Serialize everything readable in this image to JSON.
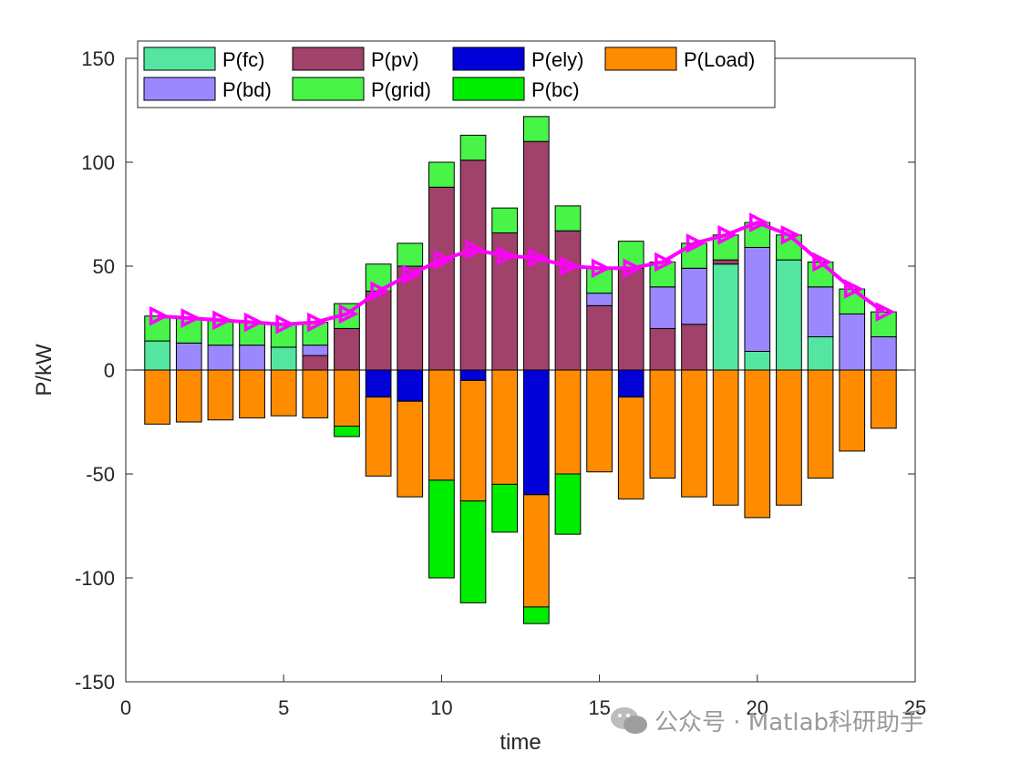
{
  "chart_data": {
    "type": "bar",
    "stacked": true,
    "xlabel": "time",
    "ylabel": "P/kW",
    "xlim": [
      0,
      25
    ],
    "ylim": [
      -150,
      150
    ],
    "xticks": [
      0,
      5,
      10,
      15,
      20,
      25
    ],
    "yticks": [
      -150,
      -100,
      -50,
      0,
      50,
      100,
      150
    ],
    "legend_position": "top",
    "x": [
      1,
      2,
      3,
      4,
      5,
      6,
      7,
      8,
      9,
      10,
      11,
      12,
      13,
      14,
      15,
      16,
      17,
      18,
      19,
      20,
      21,
      22,
      23,
      24
    ],
    "series": [
      {
        "name": "P(fc)",
        "color": "#54e6a0",
        "values": [
          14,
          0,
          0,
          0,
          11,
          0,
          0,
          0,
          0,
          0,
          0,
          0,
          0,
          0,
          0,
          0,
          0,
          0,
          51,
          9,
          53,
          16,
          0,
          0
        ]
      },
      {
        "name": "P(pv)",
        "color": "#a0426a",
        "values": [
          0,
          0,
          0,
          0,
          0,
          7,
          20,
          38,
          50,
          88,
          101,
          66,
          110,
          67,
          31,
          49,
          20,
          22,
          2,
          0,
          0,
          0,
          0,
          0
        ]
      },
      {
        "name": "P(ely)",
        "color": "#0000d8",
        "values": [
          0,
          0,
          0,
          0,
          0,
          0,
          0,
          -13,
          -15,
          0,
          -5,
          0,
          -60,
          0,
          0,
          -13,
          0,
          0,
          0,
          0,
          0,
          0,
          0,
          0
        ]
      },
      {
        "name": "P(Load)",
        "color": "#ff8c00",
        "values": [
          -26,
          -25,
          -24,
          -23,
          -22,
          -23,
          -27,
          -38,
          -46,
          -53,
          -58,
          -55,
          -54,
          -50,
          -49,
          -49,
          -52,
          -61,
          -65,
          -71,
          -65,
          -52,
          -39,
          -28
        ]
      },
      {
        "name": "P(bd)",
        "color": "#9b88ff",
        "values": [
          0,
          13,
          12,
          12,
          0,
          5,
          0,
          0,
          0,
          0,
          0,
          0,
          0,
          0,
          6,
          0,
          20,
          27,
          0,
          50,
          0,
          24,
          27,
          16
        ]
      },
      {
        "name": "P(grid)",
        "color": "#47f447",
        "values": [
          12,
          12,
          12,
          11,
          11,
          11,
          12,
          13,
          11,
          12,
          12,
          12,
          12,
          12,
          12,
          13,
          12,
          12,
          12,
          12,
          12,
          12,
          12,
          12
        ]
      },
      {
        "name": "P(bc)",
        "color": "#00ee00",
        "values": [
          0,
          0,
          0,
          0,
          0,
          0,
          -5,
          0,
          0,
          -47,
          -49,
          -23,
          -8,
          -29,
          0,
          0,
          0,
          0,
          0,
          0,
          0,
          0,
          0,
          0
        ]
      }
    ],
    "line": {
      "name": "",
      "color": "#ff00ff",
      "marker": "triangle-right",
      "values": [
        26,
        25,
        24,
        23,
        22,
        23,
        27,
        38,
        46,
        53,
        58,
        55,
        54,
        50,
        49,
        49,
        52,
        61,
        65,
        71,
        65,
        52,
        39,
        28
      ]
    }
  },
  "watermark": {
    "text": "公众号 · Matlab科研助手",
    "icon": "wechat-icon"
  }
}
